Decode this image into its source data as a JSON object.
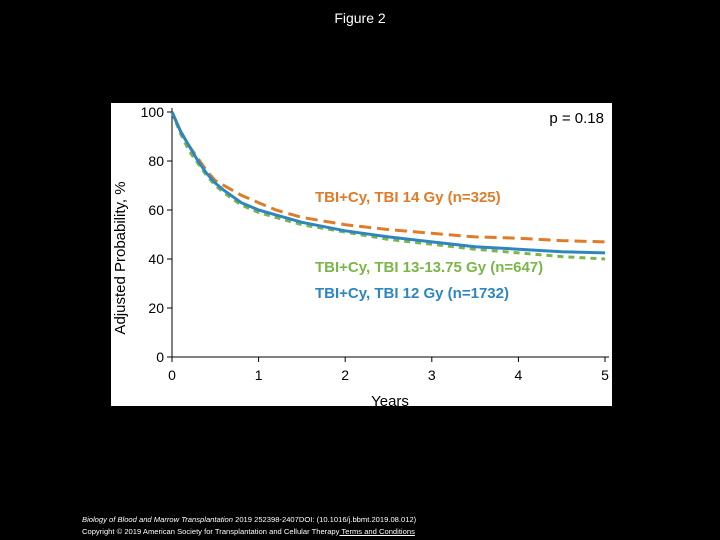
{
  "page": {
    "title": "Figure 2"
  },
  "footer": {
    "journal": "Biology of Blood and Marrow Transplantation",
    "citation": " 2019 252398-2407DOI: (10.1016/j.bbmt.2019.08.012)",
    "copyright": "Copyright © 2019 American Society for Transplantation and Cellular Therapy",
    "terms_link": " Terms and Conditions"
  },
  "chart_data": {
    "type": "line",
    "xlabel": "Years",
    "ylabel": "Adjusted Probability, %",
    "xlim": [
      0,
      5
    ],
    "ylim": [
      0,
      100
    ],
    "x_ticks": [
      "0",
      "1",
      "2",
      "3",
      "4",
      "5"
    ],
    "y_ticks": [
      "0",
      "20",
      "40",
      "60",
      "80",
      "100"
    ],
    "grid": false,
    "annotation": "p = 0.18",
    "series": [
      {
        "name": "TBI+Cy, TBI 14 Gy (n=325)",
        "color": "#E07B28",
        "dash": "long-dash",
        "points": [
          [
            0,
            100
          ],
          [
            0.1,
            92
          ],
          [
            0.2,
            86
          ],
          [
            0.3,
            81
          ],
          [
            0.4,
            76
          ],
          [
            0.5,
            72
          ],
          [
            0.6,
            70
          ],
          [
            0.8,
            66
          ],
          [
            1.0,
            63
          ],
          [
            1.2,
            60
          ],
          [
            1.5,
            57
          ],
          [
            2.0,
            54
          ],
          [
            2.5,
            52
          ],
          [
            3.0,
            50.5
          ],
          [
            3.5,
            49
          ],
          [
            4.0,
            48.5
          ],
          [
            4.5,
            47.5
          ],
          [
            5.0,
            47
          ]
        ]
      },
      {
        "name": "TBI+Cy, TBI 13-13.75 Gy (n=647)",
        "color": "#7AB648",
        "dash": "short-dash",
        "points": [
          [
            0,
            100
          ],
          [
            0.1,
            91
          ],
          [
            0.2,
            84
          ],
          [
            0.3,
            79
          ],
          [
            0.4,
            74
          ],
          [
            0.5,
            70
          ],
          [
            0.6,
            67
          ],
          [
            0.8,
            62
          ],
          [
            1.0,
            59
          ],
          [
            1.2,
            57
          ],
          [
            1.5,
            54
          ],
          [
            2.0,
            51
          ],
          [
            2.5,
            48
          ],
          [
            3.0,
            46
          ],
          [
            3.5,
            44
          ],
          [
            4.0,
            42.5
          ],
          [
            4.5,
            41
          ],
          [
            5.0,
            40
          ]
        ]
      },
      {
        "name": "TBI+Cy, TBI 12 Gy (n=1732)",
        "color": "#2E86C1",
        "dash": "solid",
        "points": [
          [
            0,
            100
          ],
          [
            0.1,
            92
          ],
          [
            0.2,
            86
          ],
          [
            0.3,
            80
          ],
          [
            0.4,
            75
          ],
          [
            0.5,
            71
          ],
          [
            0.6,
            68
          ],
          [
            0.8,
            63
          ],
          [
            1.0,
            60
          ],
          [
            1.2,
            58
          ],
          [
            1.5,
            55
          ],
          [
            2.0,
            51.5
          ],
          [
            2.5,
            49
          ],
          [
            3.0,
            47
          ],
          [
            3.5,
            45
          ],
          [
            4.0,
            44
          ],
          [
            4.5,
            43
          ],
          [
            5.0,
            42.5
          ]
        ]
      }
    ]
  }
}
